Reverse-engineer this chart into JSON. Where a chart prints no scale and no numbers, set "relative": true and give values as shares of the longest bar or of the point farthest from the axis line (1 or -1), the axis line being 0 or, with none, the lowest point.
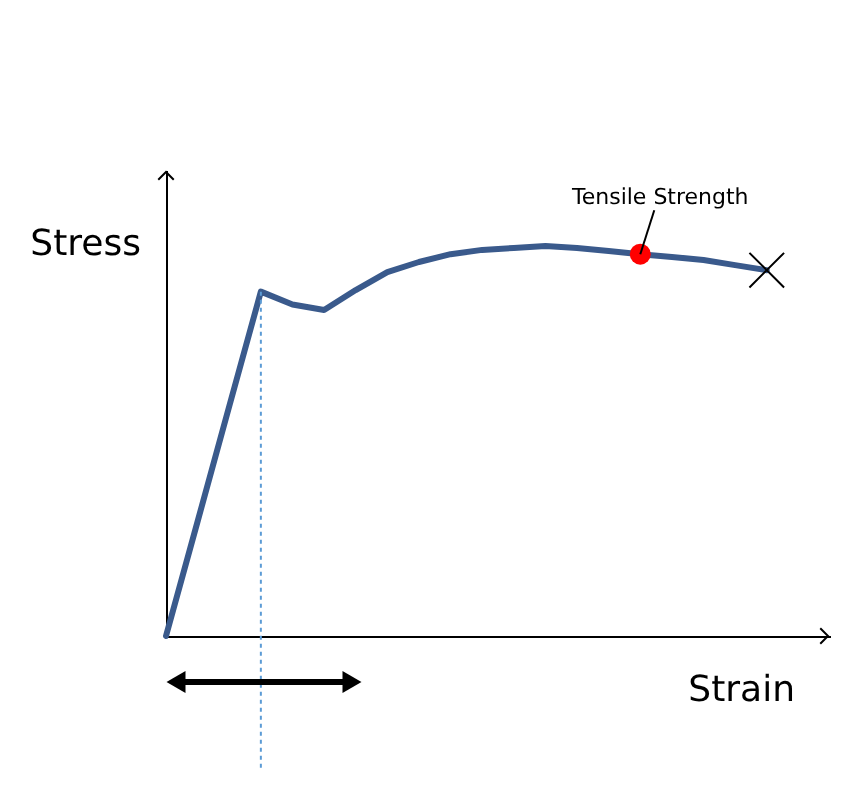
{
  "chart_data": {
    "type": "line",
    "relative": true,
    "xlabel": "Strain",
    "ylabel": "Stress",
    "grid": false,
    "legend": false,
    "tick_labels": false,
    "line_style": "solid",
    "categories": [
      null,
      null,
      null,
      null,
      null,
      null,
      null,
      null,
      null,
      null,
      null,
      null,
      null,
      null,
      null,
      null,
      null,
      null,
      null,
      null
    ],
    "series": [
      {
        "color": "#3a5a8c",
        "values": [
          0,
          0.294,
          0.589,
          0.883,
          0.85,
          0.836,
          0.887,
          0.933,
          0.959,
          0.979,
          0.99,
          0.995,
          1.0,
          0.995,
          0.987,
          0.979,
          0.972,
          0.964,
          0.951,
          0.938
        ]
      }
    ],
    "annotations": [
      {
        "text": "Tensile Strength",
        "y": 0.979
      }
    ]
  }
}
